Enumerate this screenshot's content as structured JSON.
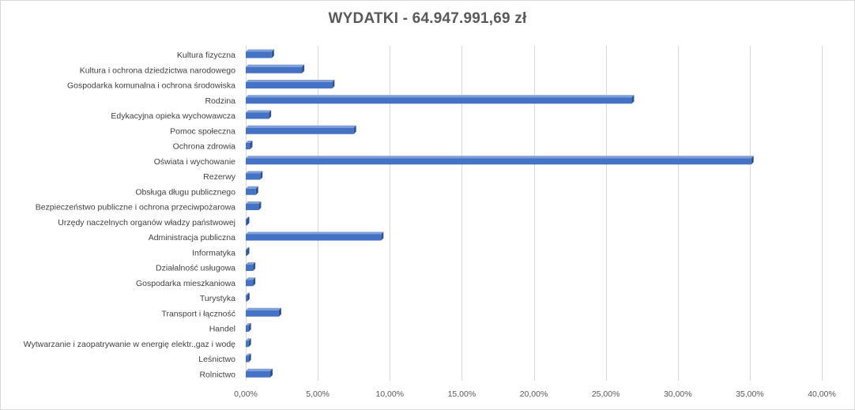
{
  "chart_data": {
    "type": "bar",
    "orientation": "horizontal",
    "title": "WYDATKI - 64.947.991,69 zł",
    "xlabel": "",
    "ylabel": "",
    "xlim": [
      0,
      40
    ],
    "tick_values": [
      0,
      5,
      10,
      15,
      20,
      25,
      30,
      35,
      40
    ],
    "tick_labels": [
      "0,00%",
      "5,00%",
      "10,00%",
      "15,00%",
      "20,00%",
      "25,00%",
      "30,00%",
      "35,00%",
      "40,00%"
    ],
    "grid": true,
    "legend": "none",
    "bar_color": "#4472c4",
    "categories": [
      "Kultura fizyczna",
      "Kultura i ochrona dziedzictwa narodowego",
      "Gospodarka komunalna i ochrona środowiska",
      "Rodzina",
      "Edykacyjna opieka wychowawcza",
      "Pomoc społeczna",
      "Ochrona zdrowia",
      "Oświata i wychowanie",
      "Rezerwy",
      "Obsługa długu publicznego",
      "Bezpieczeństwo publiczne i ochrona przeciwpożarowa",
      "Urzędy naczelnych organów władzy państwowej",
      "Administracja publiczna",
      "Informatyka",
      "Działalność usługowa",
      "Gospodarka mieszkaniowa",
      "Turystyka",
      "Transport i łączność",
      "Handel",
      "Wytwarzanie i zaopatrywanie w energię elektr.,gaz i wodę",
      "Leśnictwo",
      "Rolnictwo"
    ],
    "values": [
      1.8,
      3.9,
      6.0,
      26.8,
      1.6,
      7.5,
      0.3,
      35.1,
      1.0,
      0.7,
      0.9,
      0.02,
      9.4,
      0.05,
      0.5,
      0.5,
      0.1,
      2.3,
      0.2,
      0.2,
      0.2,
      1.7
    ]
  }
}
